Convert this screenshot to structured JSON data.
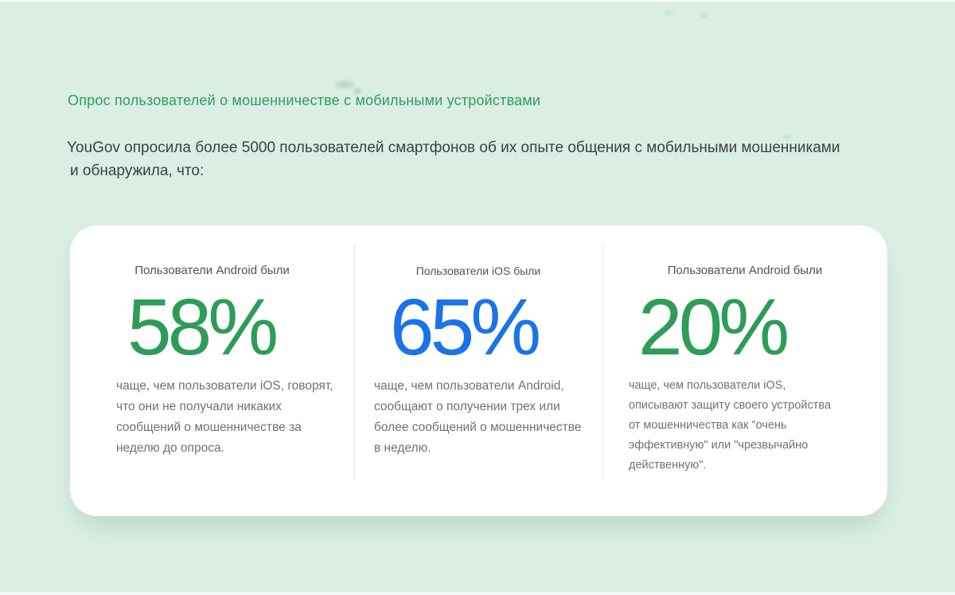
{
  "page": {
    "title": "Опрос пользователей о мошенничестве с мобильными устройствами",
    "intro_line1": "YouGov опросила более 5000 пользователей смартфонов об их опыте общения с мобильными мошенниками",
    "intro_line2": "и обнаружила, что:",
    "background_color": "#daeee3",
    "title_color": "#2f9e60",
    "body_text_color": "#3b4044"
  },
  "stats_card": {
    "background_color": "#ffffff",
    "columns": [
      {
        "header": "Пользователи Android были",
        "value": "58%",
        "value_color": "#2e9c57",
        "description_lines": [
          "чаще, чем пользователи iOS, говорят,",
          "что они не получали никаких",
          "сообщений о мошенничестве за",
          "неделю до опроса."
        ]
      },
      {
        "header": "Пользователи iOS были",
        "value": "65%",
        "value_color": "#1a73e8",
        "description_lines": [
          "чаще, чем пользователи Android,",
          "сообщают о получении трех или",
          "более сообщений о мошенничестве",
          "в неделю."
        ]
      },
      {
        "header": "Пользователи Android были",
        "value": "20%",
        "value_color": "#2e9c57",
        "description_lines": [
          "чаще, чем пользователи iOS,",
          "описывают защиту своего устройства",
          "от мошенничества как \"очень",
          "эффективную\" или \"чрезвычайно",
          "действенную\"."
        ]
      }
    ]
  }
}
